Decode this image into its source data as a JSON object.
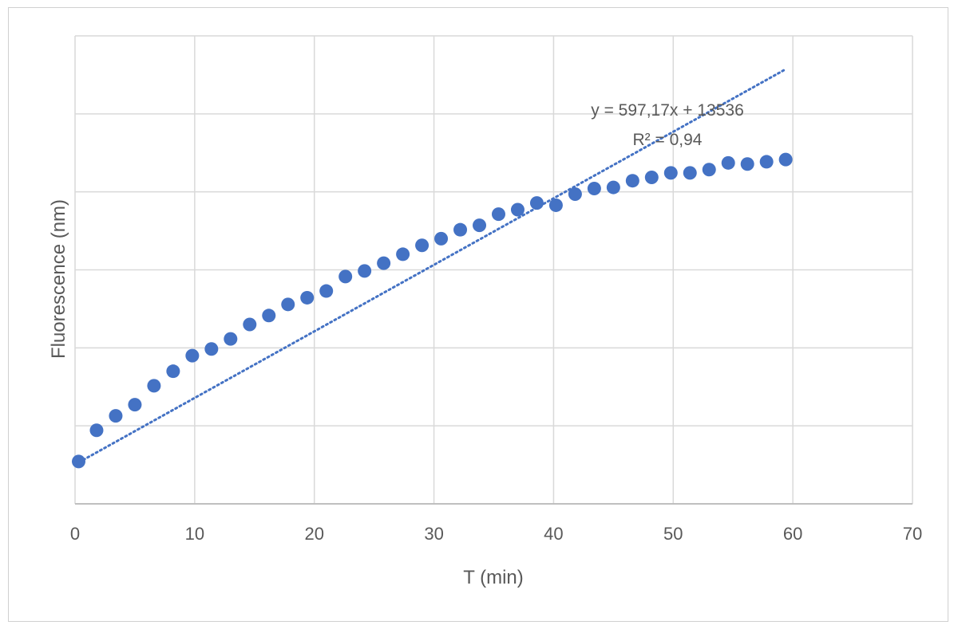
{
  "chart_data": {
    "type": "scatter",
    "xlabel": "T (min)",
    "ylabel": "Fluorescence (nm)",
    "xlim": [
      0,
      70
    ],
    "x_ticks": [
      "0",
      "10",
      "20",
      "30",
      "40",
      "50",
      "60",
      "70"
    ],
    "y_tick_labels_shown": false,
    "ylim": [
      10000,
      52000
    ],
    "y_gridlines": [
      10000,
      17000,
      24000,
      31000,
      38000,
      45000
    ],
    "grid": true,
    "legend": "none",
    "marker_color": "#4472c4",
    "series": [
      {
        "points": [
          [
            0.3,
            13800
          ],
          [
            1.8,
            16600
          ],
          [
            3.4,
            17900
          ],
          [
            5.0,
            18900
          ],
          [
            6.6,
            20600
          ],
          [
            8.2,
            21900
          ],
          [
            9.8,
            23300
          ],
          [
            11.4,
            23900
          ],
          [
            13.0,
            24800
          ],
          [
            14.6,
            26100
          ],
          [
            16.2,
            26900
          ],
          [
            17.8,
            27900
          ],
          [
            19.4,
            28500
          ],
          [
            21.0,
            29100
          ],
          [
            22.6,
            30400
          ],
          [
            24.2,
            30900
          ],
          [
            25.8,
            31600
          ],
          [
            27.4,
            32400
          ],
          [
            29.0,
            33200
          ],
          [
            30.6,
            33800
          ],
          [
            32.2,
            34600
          ],
          [
            33.8,
            35000
          ],
          [
            35.4,
            36000
          ],
          [
            37.0,
            36400
          ],
          [
            38.6,
            37000
          ],
          [
            40.2,
            36800
          ],
          [
            41.8,
            37800
          ],
          [
            43.4,
            38300
          ],
          [
            45.0,
            38400
          ],
          [
            46.6,
            39000
          ],
          [
            48.2,
            39300
          ],
          [
            49.8,
            39700
          ],
          [
            51.4,
            39700
          ],
          [
            53.0,
            40000
          ],
          [
            54.6,
            40600
          ],
          [
            56.2,
            40500
          ],
          [
            57.8,
            40700
          ],
          [
            59.4,
            40900
          ]
        ]
      }
    ],
    "trendline": {
      "style": "dotted",
      "slope": 597.17,
      "intercept": 13536,
      "x_range": [
        0,
        59.4
      ]
    },
    "annotations": {
      "equation": "y = 597,17x + 13536",
      "r_squared": "R² = 0,94"
    }
  }
}
